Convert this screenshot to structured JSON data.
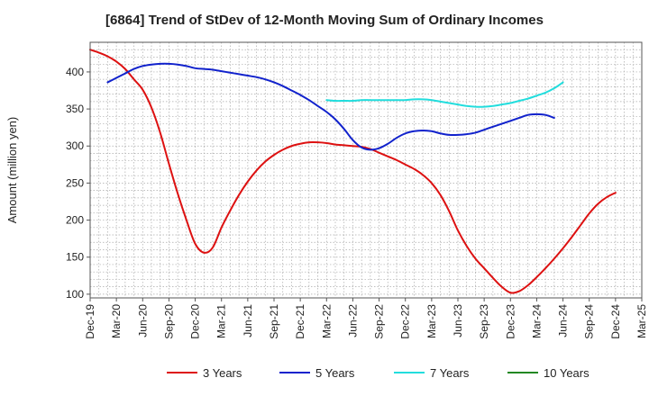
{
  "chart_data": {
    "type": "line",
    "title": "[6864]  Trend of StDev of 12-Month Moving Sum of Ordinary Incomes",
    "xlabel": "",
    "ylabel": "Amount (million yen)",
    "ylim": [
      95,
      440
    ],
    "yticks": [
      100,
      150,
      200,
      250,
      300,
      350,
      400
    ],
    "x_tick_labels": [
      "Dec-19",
      "Mar-20",
      "Jun-20",
      "Sep-20",
      "Dec-20",
      "Mar-21",
      "Jun-21",
      "Sep-21",
      "Dec-21",
      "Mar-22",
      "Jun-22",
      "Sep-22",
      "Dec-22",
      "Mar-23",
      "Jun-23",
      "Sep-23",
      "Dec-23",
      "Mar-24",
      "Jun-24",
      "Sep-24",
      "Dec-24",
      "Mar-25"
    ],
    "grid": true,
    "legend_position": "bottom",
    "series": [
      {
        "name": "3 Years",
        "color": "#dd1111",
        "start_month_index": 0,
        "values": [
          430,
          426,
          421,
          414,
          404,
          390,
          376,
          352,
          318,
          276,
          236,
          200,
          168,
          156,
          163,
          190,
          213,
          234,
          252,
          267,
          279,
          288,
          295,
          300,
          303,
          305,
          305,
          304,
          302,
          301,
          300,
          299,
          296,
          291,
          286,
          281,
          275,
          269,
          261,
          250,
          234,
          212,
          186,
          165,
          148,
          135,
          122,
          110,
          102,
          104,
          112,
          123,
          135,
          148,
          162,
          177,
          193,
          209,
          222,
          231,
          237
        ]
      },
      {
        "name": "5 Years",
        "color": "#1122cc",
        "start_month_index": 2,
        "values": [
          386,
          392,
          398,
          404,
          408,
          410,
          411,
          411,
          410,
          408,
          405,
          404,
          403,
          401,
          399,
          397,
          395,
          393,
          390,
          386,
          381,
          375,
          369,
          362,
          354,
          346,
          336,
          323,
          308,
          298,
          295,
          297,
          303,
          311,
          317,
          320,
          321,
          320,
          317,
          315,
          315,
          316,
          318,
          322,
          326,
          330,
          334,
          338,
          342,
          343,
          342,
          338
        ]
      },
      {
        "name": "7 Years",
        "color": "#22dddd",
        "start_month_index": 27,
        "values": [
          362,
          361,
          361,
          361,
          362,
          362,
          362,
          362,
          362,
          362,
          363,
          363,
          362,
          360,
          358,
          356,
          354,
          353,
          353,
          354,
          356,
          358,
          361,
          364,
          368,
          372,
          378,
          386
        ]
      },
      {
        "name": "10 Years",
        "color": "#228822",
        "start_month_index": 0,
        "values": []
      }
    ]
  }
}
